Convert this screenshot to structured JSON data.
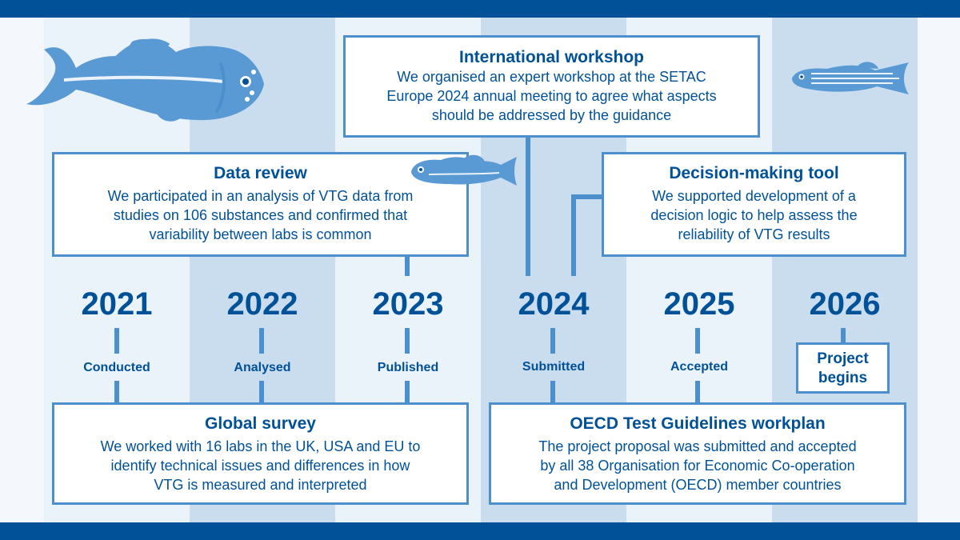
{
  "colors": {
    "dark_blue": "#005198",
    "line_blue": "#4b8fcd",
    "fish_blue": "#5a9ad4",
    "stripe_light": "#eaf2fa",
    "stripe_mid": "#c9ddef"
  },
  "timeline": {
    "years": [
      {
        "year": "2021",
        "status": "Conducted"
      },
      {
        "year": "2022",
        "status": "Analysed"
      },
      {
        "year": "2023",
        "status": "Published"
      },
      {
        "year": "2024",
        "status": "Submitted"
      },
      {
        "year": "2025",
        "status": "Accepted"
      },
      {
        "year": "2026",
        "status": "Project begins"
      }
    ]
  },
  "boxes": {
    "workshop": {
      "title": "International workshop",
      "lines": [
        "We organised an expert workshop at the SETAC",
        "Europe 2024 annual meeting to agree what aspects",
        "should be addressed by the guidance"
      ]
    },
    "data_review": {
      "title": "Data review",
      "lines": [
        "We participated in an analysis of VTG data from",
        "studies on 106 substances and confirmed that",
        "variability between labs is common"
      ]
    },
    "decision_tool": {
      "title": "Decision-making tool",
      "lines": [
        "We supported development of a",
        "decision logic to help assess the",
        "reliability of VTG results"
      ]
    },
    "global_survey": {
      "title": "Global survey",
      "lines": [
        "We worked with 16 labs in the UK, USA and EU to",
        "identify technical issues and differences in how",
        "VTG is measured and interpreted"
      ]
    },
    "oecd": {
      "title": "OECD Test Guidelines workplan",
      "lines": [
        "The project proposal was submitted and accepted",
        "by all 38 Organisation for Economic Co-operation",
        "and Development (OECD) member countries"
      ]
    }
  },
  "project_begins": {
    "line1": "Project",
    "line2": "begins"
  }
}
